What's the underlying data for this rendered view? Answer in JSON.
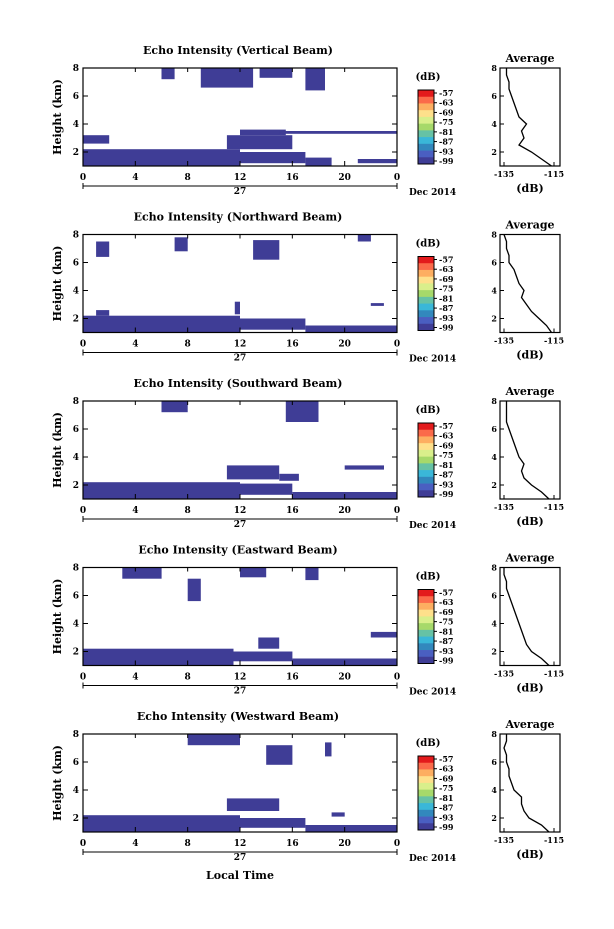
{
  "chart_data": [
    {
      "type": "heatmap",
      "title": "Echo Intensity (Vertical Beam)"
    },
    {
      "type": "heatmap",
      "title": "Echo Intensity (Northward Beam)"
    },
    {
      "type": "heatmap",
      "title": "Echo Intensity (Southward Beam)"
    },
    {
      "type": "heatmap",
      "title": "Echo Intensity (Eastward Beam)"
    },
    {
      "type": "heatmap",
      "title": "Echo Intensity (Westward Beam)"
    }
  ],
  "common": {
    "ylabel": "Height (km)",
    "yticks": [
      "2",
      "4",
      "6",
      "8"
    ],
    "xticks": [
      "0",
      "4",
      "8",
      "12",
      "16",
      "20",
      "0"
    ],
    "date_day": "27",
    "date_label": "Dec 2014",
    "xlabel": "Local Time",
    "x_range_hours": [
      0,
      24
    ],
    "y_range_km": [
      1,
      8
    ],
    "colorbar": {
      "unit": "(dB)",
      "labels": [
        "-57",
        "-63",
        "-69",
        "-75",
        "-81",
        "-87",
        "-93",
        "-99"
      ],
      "colors": [
        "#e31a1c",
        "#fb6a4a",
        "#fdae61",
        "#fee08b",
        "#d9ef8b",
        "#a6d96a",
        "#66c2a5",
        "#3ab7d8",
        "#3288bd",
        "#4a5fc1",
        "#3f3d96"
      ]
    },
    "profile": {
      "title": "Average",
      "xlabel": "(dB)",
      "xticks": [
        "-135",
        "-115"
      ],
      "yticks": [
        "2",
        "4",
        "6",
        "8"
      ],
      "x_range": [
        -135,
        -115
      ]
    }
  },
  "profiles": [
    [
      [
        -116,
        1.0
      ],
      [
        -120,
        1.5
      ],
      [
        -124,
        2.0
      ],
      [
        -129,
        2.5
      ],
      [
        -127,
        3.0
      ],
      [
        -128,
        3.5
      ],
      [
        -126,
        4.0
      ],
      [
        -129,
        4.5
      ],
      [
        -130,
        5.0
      ],
      [
        -131,
        5.5
      ],
      [
        -132,
        6.0
      ],
      [
        -133,
        6.5
      ],
      [
        -133,
        7.0
      ],
      [
        -134,
        7.5
      ],
      [
        -134,
        8.0
      ]
    ],
    [
      [
        -116,
        1.0
      ],
      [
        -118,
        1.5
      ],
      [
        -121,
        2.0
      ],
      [
        -124,
        2.5
      ],
      [
        -126,
        3.0
      ],
      [
        -128,
        3.5
      ],
      [
        -127,
        4.0
      ],
      [
        -129,
        4.5
      ],
      [
        -130,
        5.0
      ],
      [
        -131,
        5.5
      ],
      [
        -133,
        6.0
      ],
      [
        -133,
        6.5
      ],
      [
        -134,
        7.0
      ],
      [
        -134,
        7.5
      ],
      [
        -135,
        8.0
      ]
    ],
    [
      [
        -117,
        1.0
      ],
      [
        -120,
        1.5
      ],
      [
        -124,
        2.0
      ],
      [
        -127,
        2.5
      ],
      [
        -128,
        3.0
      ],
      [
        -127,
        3.5
      ],
      [
        -129,
        4.0
      ],
      [
        -130,
        4.5
      ],
      [
        -131,
        5.0
      ],
      [
        -132,
        5.5
      ],
      [
        -133,
        6.0
      ],
      [
        -134,
        6.5
      ],
      [
        -134,
        7.0
      ],
      [
        -134,
        7.5
      ],
      [
        -134,
        8.0
      ]
    ],
    [
      [
        -117,
        1.0
      ],
      [
        -120,
        1.5
      ],
      [
        -124,
        2.0
      ],
      [
        -126,
        2.5
      ],
      [
        -127,
        3.0
      ],
      [
        -128,
        3.5
      ],
      [
        -129,
        4.0
      ],
      [
        -130,
        4.5
      ],
      [
        -131,
        5.0
      ],
      [
        -132,
        5.5
      ],
      [
        -133,
        6.0
      ],
      [
        -134,
        6.5
      ],
      [
        -134,
        7.0
      ],
      [
        -135,
        7.5
      ],
      [
        -135,
        8.0
      ]
    ],
    [
      [
        -117,
        1.0
      ],
      [
        -120,
        1.5
      ],
      [
        -125,
        2.0
      ],
      [
        -127,
        2.5
      ],
      [
        -128,
        3.0
      ],
      [
        -128,
        3.5
      ],
      [
        -131,
        4.0
      ],
      [
        -132,
        4.5
      ],
      [
        -133,
        5.0
      ],
      [
        -133,
        5.5
      ],
      [
        -134,
        6.0
      ],
      [
        -134,
        6.5
      ],
      [
        -135,
        7.0
      ],
      [
        -134,
        7.5
      ],
      [
        -134,
        8.0
      ]
    ]
  ],
  "echo_regions": [
    [
      [
        0,
        1,
        12,
        2.2
      ],
      [
        12,
        1.2,
        17,
        2.0
      ],
      [
        17,
        1.0,
        19,
        1.6
      ],
      [
        21,
        1.2,
        24,
        1.5
      ],
      [
        0,
        2.6,
        2,
        3.2
      ],
      [
        11,
        2.2,
        16,
        3.2
      ],
      [
        12,
        3.2,
        15.5,
        3.6
      ],
      [
        15,
        3.3,
        24,
        3.5
      ],
      [
        9,
        6.6,
        13,
        8
      ],
      [
        13.5,
        7.3,
        16,
        8
      ],
      [
        17,
        6.4,
        18.5,
        8
      ],
      [
        6,
        7.2,
        7,
        8
      ]
    ],
    [
      [
        0,
        1,
        12,
        2.2
      ],
      [
        12,
        1.2,
        17,
        2.0
      ],
      [
        17,
        1.0,
        24,
        1.5
      ],
      [
        1,
        2.2,
        2,
        2.6
      ],
      [
        11.6,
        2.3,
        12,
        3.2
      ],
      [
        22,
        2.9,
        23,
        3.1
      ],
      [
        1,
        6.4,
        2,
        7.5
      ],
      [
        7,
        6.8,
        8,
        7.8
      ],
      [
        13,
        6.2,
        15,
        7.6
      ],
      [
        21,
        7.5,
        22,
        8
      ]
    ],
    [
      [
        0,
        1,
        12,
        2.2
      ],
      [
        12,
        1.3,
        16,
        2.1
      ],
      [
        16,
        1.0,
        24,
        1.5
      ],
      [
        11,
        2.4,
        15,
        3.4
      ],
      [
        15,
        2.3,
        16.5,
        2.8
      ],
      [
        20,
        3.1,
        23,
        3.4
      ],
      [
        15.5,
        6.5,
        18,
        8
      ],
      [
        6,
        7.2,
        8,
        8
      ]
    ],
    [
      [
        0,
        1,
        11.5,
        2.2
      ],
      [
        11.5,
        1.3,
        16,
        2.0
      ],
      [
        16,
        1.0,
        24,
        1.5
      ],
      [
        13.4,
        2.2,
        15,
        3.0
      ],
      [
        22,
        3.0,
        24,
        3.4
      ],
      [
        8,
        5.6,
        9,
        7.2
      ],
      [
        3,
        7.2,
        6,
        8
      ],
      [
        12,
        7.3,
        14,
        8
      ],
      [
        17,
        7.1,
        18,
        8
      ]
    ],
    [
      [
        0,
        1,
        12,
        2.2
      ],
      [
        12,
        1.3,
        17,
        2.0
      ],
      [
        17,
        1.0,
        24,
        1.5
      ],
      [
        11,
        2.5,
        15,
        3.4
      ],
      [
        19,
        2.1,
        20,
        2.4
      ],
      [
        14,
        5.8,
        16,
        7.2
      ],
      [
        8,
        7.2,
        12,
        8
      ],
      [
        18.5,
        6.4,
        19,
        7.4
      ]
    ]
  ]
}
